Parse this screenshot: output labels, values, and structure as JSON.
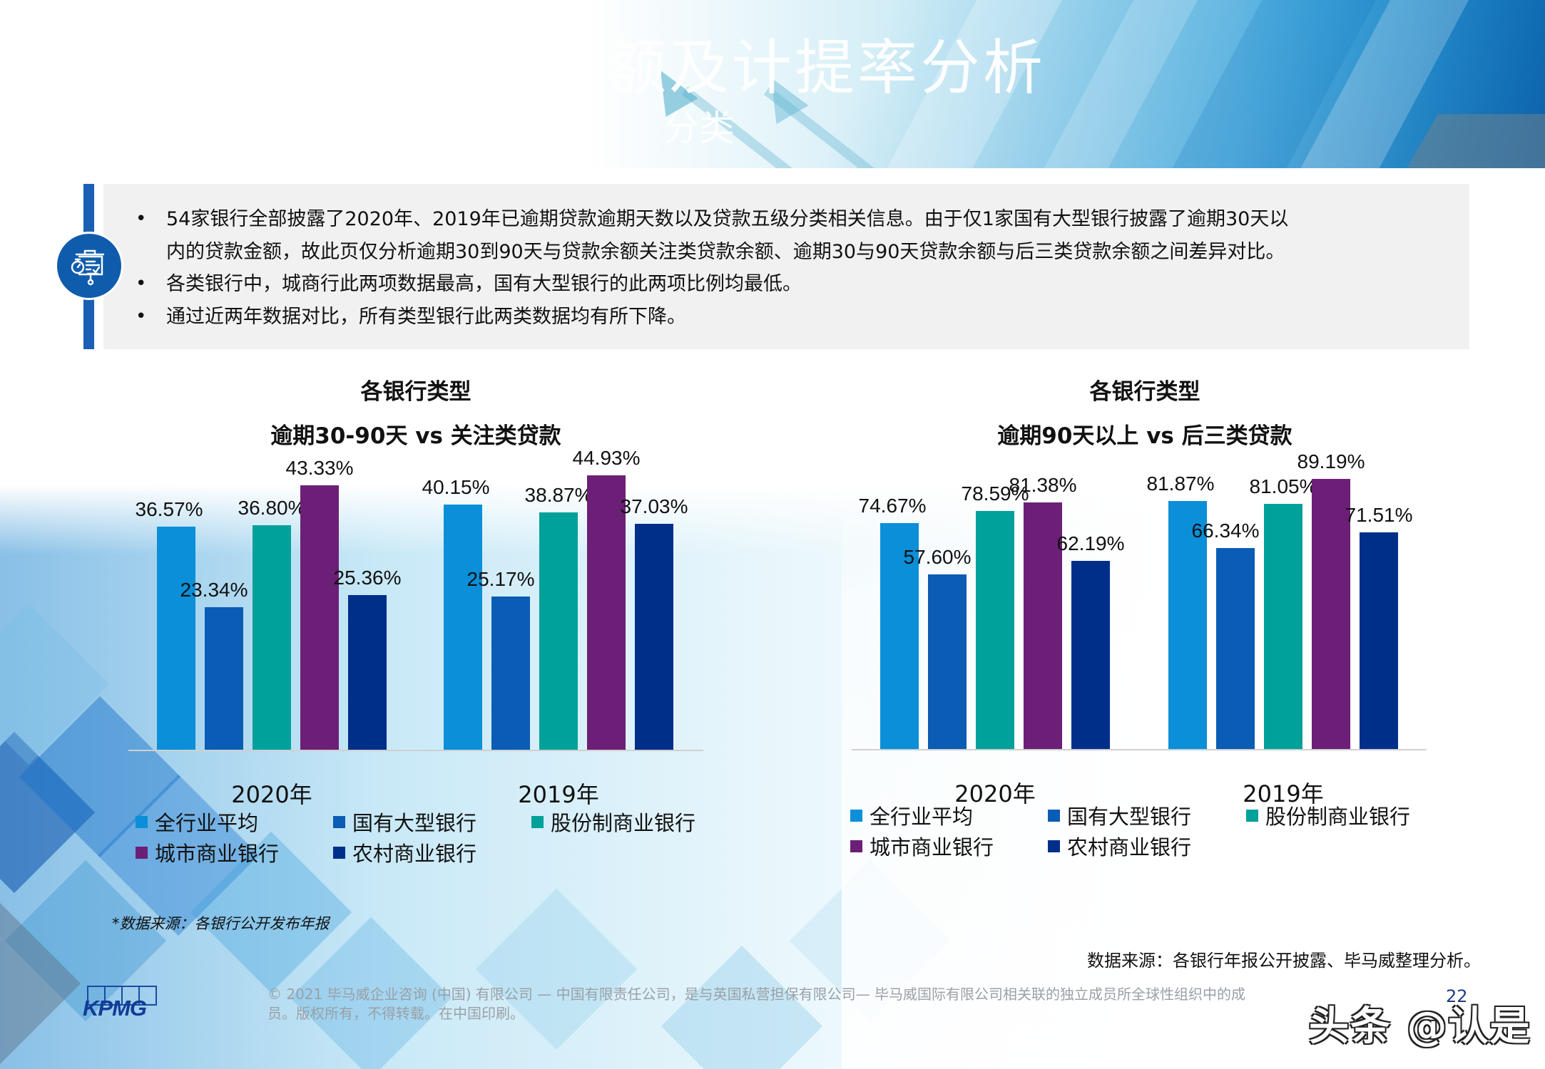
{
  "banner": {
    "title_fragment": "额及计提率分析",
    "subtitle_fragment": "分类"
  },
  "info": {
    "icon": "presentation-stopwatch-icon",
    "bullets": [
      "54家银行全部披露了2020年、2019年已逾期贷款逾期天数以及贷款五级分类相关信息。由于仅1家国有大型银行披露了逾期30天以内的贷款金额，故此页仅分析逾期30到90天与贷款余额关注类贷款余额、逾期30与90天贷款余额与后三类贷款余额之间差异对比。",
      "各类银行中，城商行此两项数据最高，国有大型银行的此两项比例均最低。",
      "通过近两年数据对比，所有类型银行此两类数据均有所下降。"
    ],
    "bullet_1_line1": "54家银行全部披露了2020年、2019年已逾期贷款逾期天数以及贷款五级分类相关信息。由于仅1家国有大型银行披露了逾期30天以",
    "bullet_1_line2": "内的贷款金额，故此页仅分析逾期30到90天与贷款余额关注类贷款余额、逾期30与90天贷款余额与后三类贷款余额之间差异对比。"
  },
  "colors": {
    "全行业平均": "#0a8fd8",
    "国有大型银行": "#0a5cb5",
    "股份制商业银行": "#00a19a",
    "城市商业银行": "#6c1f76",
    "农村商业银行": "#002f8a",
    "accent_bar": "#1a5fb4"
  },
  "chart_data": [
    {
      "type": "bar",
      "title": "各银行类型",
      "subtitle": "逾期30-90天 vs 关注类贷款",
      "categories": [
        "2020年",
        "2019年"
      ],
      "series": [
        {
          "name": "全行业平均",
          "values": [
            36.57,
            40.15
          ],
          "labels": [
            "36.57%",
            "40.15%"
          ]
        },
        {
          "name": "国有大型银行",
          "values": [
            23.34,
            25.17
          ],
          "labels": [
            "23.34%",
            "25.17%"
          ]
        },
        {
          "name": "股份制商业银行",
          "values": [
            36.8,
            38.87
          ],
          "labels": [
            "36.80%",
            "38.87%"
          ]
        },
        {
          "name": "城市商业银行",
          "values": [
            43.33,
            44.93
          ],
          "labels": [
            "43.33%",
            "44.93%"
          ]
        },
        {
          "name": "农村商业银行",
          "values": [
            25.36,
            37.03
          ],
          "labels": [
            "25.36%",
            "37.03%"
          ]
        }
      ],
      "xlabel": "",
      "ylabel": "",
      "grid": false,
      "legend_position": "bottom"
    },
    {
      "type": "bar",
      "title": "各银行类型",
      "subtitle": "逾期90天以上 vs 后三类贷款",
      "categories": [
        "2020年",
        "2019年"
      ],
      "series": [
        {
          "name": "全行业平均",
          "values": [
            74.67,
            81.87
          ],
          "labels": [
            "74.67%",
            "81.87%"
          ]
        },
        {
          "name": "国有大型银行",
          "values": [
            57.6,
            66.34
          ],
          "labels": [
            "57.60%",
            "66.34%"
          ]
        },
        {
          "name": "股份制商业银行",
          "values": [
            78.59,
            81.05
          ],
          "labels": [
            "78.59%",
            "81.05%"
          ]
        },
        {
          "name": "城市商业银行",
          "values": [
            81.38,
            89.19
          ],
          "labels": [
            "81.38%",
            "89.19%"
          ]
        },
        {
          "name": "农村商业银行",
          "values": [
            62.19,
            71.51
          ],
          "labels": [
            "62.19%",
            "71.51%"
          ]
        }
      ],
      "xlabel": "",
      "ylabel": "",
      "grid": false,
      "legend_position": "bottom"
    }
  ],
  "notes": {
    "left_source": "*数据来源：各银行公开发布年报",
    "right_source": "数据来源：各银行年报公开披露、毕马威整理分析。"
  },
  "footer": {
    "logo": "KPMG",
    "copyright_line1": "© 2021 毕马威企业咨询 (中国) 有限公司 — 中国有限责任公司，是与英国私营担保有限公司— 毕马威国际有限公司相关联的独立成员所全球性组织中的成",
    "copyright_line2": "员。版权所有，不得转载。在中国印刷。",
    "page_number": "22",
    "watermark": "头条 @认是"
  }
}
